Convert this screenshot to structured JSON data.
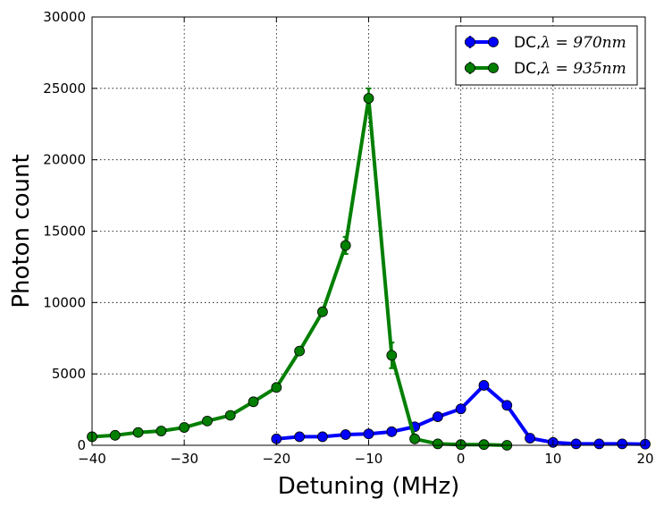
{
  "chart_data": {
    "type": "line",
    "xlabel": "Detuning (MHz)",
    "ylabel": "Photon count",
    "xlim": [
      -40,
      20
    ],
    "ylim": [
      0,
      30000
    ],
    "xticks": [
      -40,
      -30,
      -20,
      -10,
      0,
      10,
      20
    ],
    "yticks": [
      0,
      5000,
      10000,
      15000,
      20000,
      25000,
      30000
    ],
    "xtick_labels": [
      "−40",
      "−30",
      "−20",
      "−10",
      "0",
      "10",
      "20"
    ],
    "ytick_labels": [
      "0",
      "5000",
      "10000",
      "15000",
      "20000",
      "25000",
      "30000"
    ],
    "grid": true,
    "legend_position": "top-right",
    "series": [
      {
        "name": "DC,λ = 970nm",
        "legend_prefix": "DC,",
        "legend_math": "λ = 970nm",
        "color": "#0000ff",
        "x": [
          -20,
          -17.5,
          -15,
          -12.5,
          -10,
          -7.5,
          -5,
          -2.5,
          0,
          2.5,
          5,
          7.5,
          10,
          12.5,
          15,
          17.5,
          20
        ],
        "y": [
          450,
          600,
          600,
          750,
          800,
          950,
          1300,
          2000,
          2550,
          4200,
          2800,
          500,
          200,
          100,
          100,
          100,
          80
        ],
        "err": [
          60,
          60,
          60,
          60,
          60,
          60,
          80,
          100,
          120,
          150,
          120,
          60,
          40,
          30,
          30,
          30,
          30
        ]
      },
      {
        "name": "DC,λ = 935nm",
        "legend_prefix": "DC,",
        "legend_math": "λ = 935nm",
        "color": "#007f00",
        "x": [
          -40,
          -37.5,
          -35,
          -32.5,
          -30,
          -27.5,
          -25,
          -22.5,
          -20,
          -17.5,
          -15,
          -12.5,
          -10,
          -7.5,
          -5,
          -2.5,
          0,
          2.5,
          5
        ],
        "y": [
          600,
          700,
          900,
          1000,
          1250,
          1700,
          2100,
          3050,
          4050,
          6600,
          9350,
          14000,
          24300,
          6300,
          450,
          100,
          50,
          50,
          0
        ],
        "err": [
          50,
          50,
          60,
          60,
          70,
          80,
          90,
          120,
          150,
          200,
          250,
          600,
          700,
          900,
          80,
          30,
          20,
          20,
          10
        ]
      }
    ]
  }
}
